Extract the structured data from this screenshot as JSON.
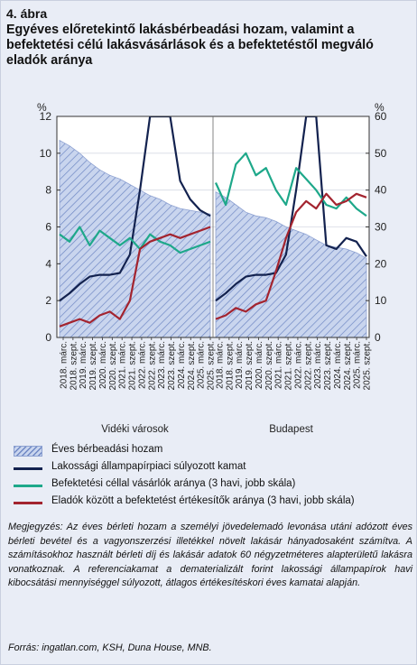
{
  "figure": {
    "label": "4. ábra",
    "title": "Egyéves előretekintő lakásbérbeadási hozam, valamint a befektetési célú lakásvásárlások és a befektetéstől megváló eladók aránya"
  },
  "chart_data": {
    "type": "line",
    "panels": [
      "Vidéki városok",
      "Budapest"
    ],
    "left_axis": {
      "unit": "%",
      "ylim": [
        0,
        12
      ],
      "ticks": [
        0,
        2,
        4,
        6,
        8,
        10,
        12
      ]
    },
    "right_axis": {
      "unit": "%",
      "ylim": [
        0,
        60
      ],
      "ticks": [
        0,
        10,
        20,
        30,
        40,
        50,
        60
      ]
    },
    "x_ticks": [
      "2018. márc.",
      "2018. szept.",
      "2019. márc.",
      "2019. szept.",
      "2020. márc.",
      "2020. szept.",
      "2021. márc.",
      "2021. szept.",
      "2022. márc.",
      "2022. szept.",
      "2023. márc.",
      "2023. szept.",
      "2024. márc.",
      "2024. szept.",
      "2025. márc.",
      "2025. szept."
    ],
    "series": [
      {
        "name": "Éves bérbeadási hozam",
        "type": "area",
        "axis": "left",
        "color": "#9fb3db",
        "x": [
          0,
          2,
          4,
          6,
          8,
          10,
          12,
          14,
          16,
          18,
          20,
          22,
          24,
          26,
          28,
          30
        ],
        "values_videk": [
          10.7,
          10.4,
          10.0,
          9.5,
          9.1,
          8.8,
          8.6,
          8.3,
          8.0,
          7.7,
          7.5,
          7.2,
          7.0,
          6.9,
          6.8,
          6.7
        ],
        "values_budapest": [
          7.9,
          7.6,
          7.2,
          6.8,
          6.6,
          6.5,
          6.3,
          6.0,
          5.8,
          5.6,
          5.3,
          5.0,
          4.9,
          4.8,
          4.6,
          4.3
        ]
      },
      {
        "name": "Lakossági állampapírpiaci súlyozott kamat",
        "type": "line",
        "axis": "left",
        "color": "#13224f",
        "x": [
          0,
          2,
          4,
          6,
          8,
          10,
          12,
          14,
          16,
          18,
          20,
          22,
          24,
          26,
          28,
          30
        ],
        "values_videk": [
          2.0,
          2.4,
          2.9,
          3.3,
          3.4,
          3.4,
          3.5,
          4.5,
          8.0,
          12.5,
          12.5,
          12.5,
          8.5,
          7.5,
          6.9,
          6.6
        ],
        "values_budapest": [
          2.0,
          2.4,
          2.9,
          3.3,
          3.4,
          3.4,
          3.5,
          4.5,
          8.0,
          12.5,
          12.5,
          5.0,
          4.8,
          5.4,
          5.2,
          4.4
        ]
      },
      {
        "name": "Befektetési céllal vásárlók aránya (3 havi, jobb skála)",
        "type": "line",
        "axis": "right",
        "color": "#1ea88a",
        "x": [
          0,
          2,
          4,
          6,
          8,
          10,
          12,
          14,
          16,
          18,
          20,
          22,
          24,
          26,
          28,
          30
        ],
        "values_videk": [
          28,
          26,
          30,
          25,
          29,
          27,
          25,
          27,
          24,
          28,
          26,
          25,
          23,
          24,
          25,
          26
        ],
        "values_budapest": [
          42,
          36,
          47,
          50,
          44,
          46,
          40,
          36,
          46,
          43,
          40,
          36,
          35,
          38,
          35,
          33
        ]
      },
      {
        "name": "Eladók között a befektetést értékesítők aránya (3 havi, jobb skála)",
        "type": "line",
        "axis": "right",
        "color": "#a3242f",
        "x": [
          0,
          2,
          4,
          6,
          8,
          10,
          12,
          14,
          16,
          18,
          20,
          22,
          24,
          26,
          28,
          30
        ],
        "values_videk": [
          3,
          4,
          5,
          4,
          6,
          7,
          5,
          10,
          24,
          26,
          27,
          28,
          27,
          28,
          29,
          30
        ],
        "values_budapest": [
          5,
          6,
          8,
          7,
          9,
          10,
          18,
          27,
          34,
          37,
          35,
          39,
          36,
          37,
          39,
          38
        ]
      }
    ]
  },
  "legend": [
    {
      "label": "Éves bérbeadási hozam",
      "color": "#9fb3db",
      "symbol": "hatched-box"
    },
    {
      "label": "Lakossági állampapírpiaci súlyozott kamat",
      "color": "#13224f",
      "symbol": "line"
    },
    {
      "label": "Befektetési céllal vásárlók aránya (3 havi, jobb skála)",
      "color": "#1ea88a",
      "symbol": "line"
    },
    {
      "label": "Eladók között a befektetést értékesítők aránya (3 havi, jobb skála)",
      "color": "#a3242f",
      "symbol": "line"
    }
  ],
  "note": "Megjegyzés: Az éves bérleti hozam a személyi jövedelemadó levonása utáni adózott éves bérleti bevétel és a vagyonszerzési illetékkel növelt lakásár hányadosaként számítva. A számításokhoz használt bérleti díj és lakásár adatok 60 négyzetméteres alapterületű lakásra vonatkoznak. A referenciakamat a dematerializált forint lakossági állampapírok havi kibocsátási mennyiséggel súlyozott, átlagos értékesítéskori éves kamatai alapján.",
  "source": "Forrás: ingatlan.com, KSH, Duna House, MNB."
}
